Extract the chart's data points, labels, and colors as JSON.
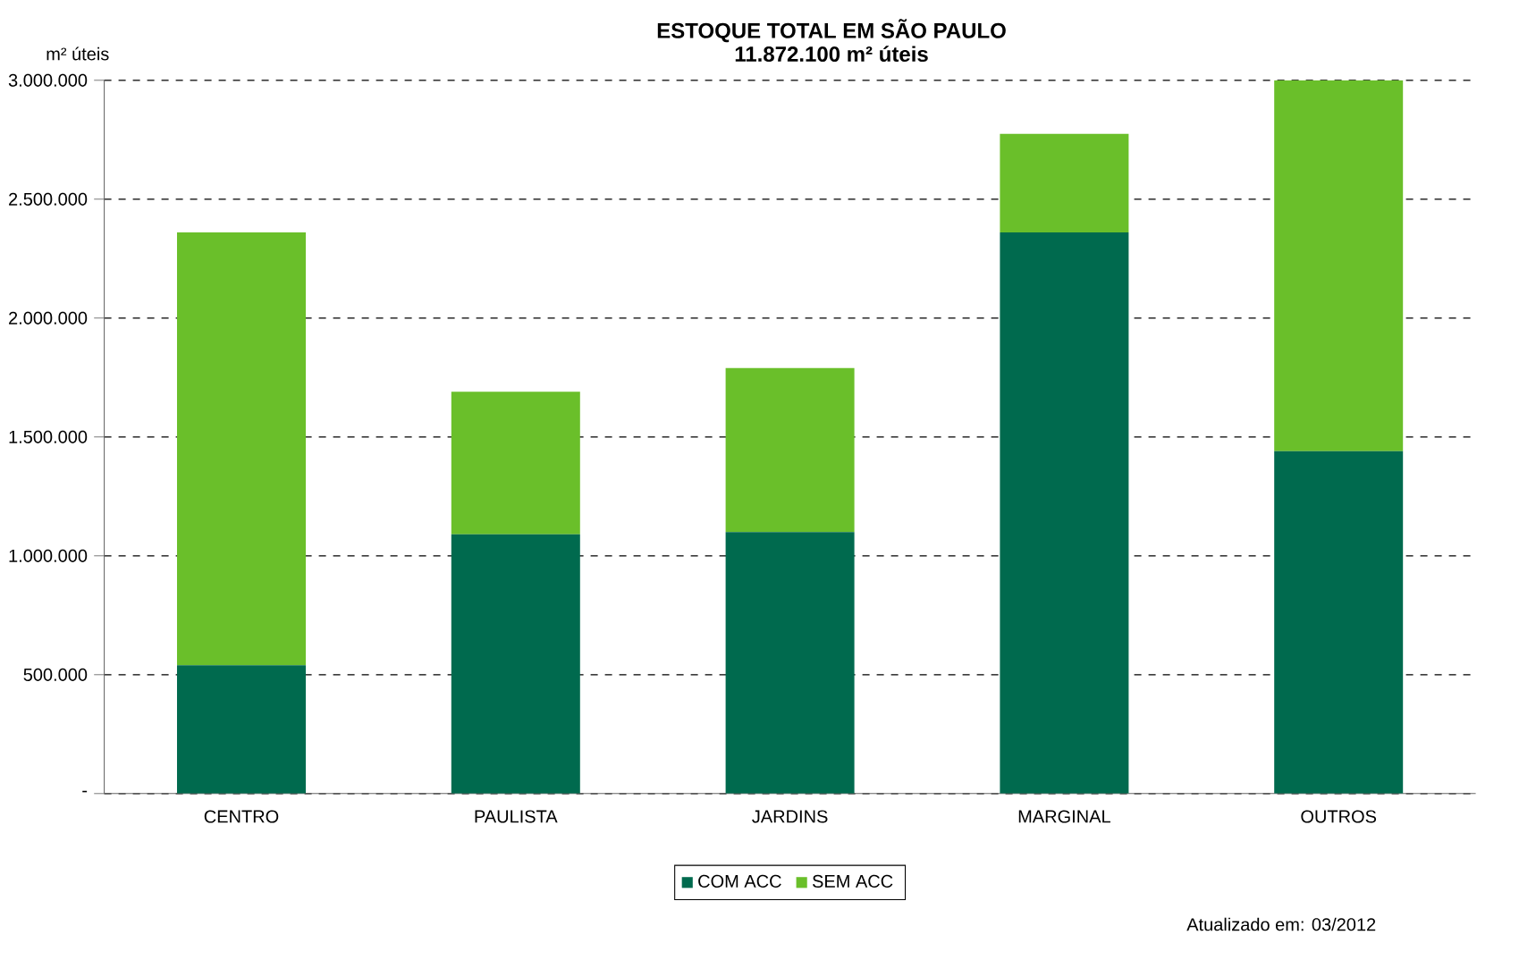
{
  "chart_data": {
    "type": "bar",
    "title": "ESTOQUE TOTAL EM SÃO PAULO",
    "subtitle": "11.872.100 m² úteis",
    "ylabel": "m² úteis",
    "categories": [
      "CENTRO",
      "PAULISTA",
      "JARDINS",
      "MARGINAL",
      "OUTROS"
    ],
    "series": [
      {
        "name": "COM ACC",
        "color": "#006a4e",
        "values": [
          540000,
          1090000,
          1100000,
          2360000,
          1440000
        ]
      },
      {
        "name": "SEM ACC",
        "color": "#6abf2a",
        "values": [
          1820000,
          600000,
          690000,
          415000,
          1560000
        ]
      }
    ],
    "stacked": true,
    "ylim": [
      0,
      3000000
    ],
    "yticks": [
      {
        "value": 0,
        "label": "-"
      },
      {
        "value": 500000,
        "label": "500.000"
      },
      {
        "value": 1000000,
        "label": "1.000.000"
      },
      {
        "value": 1500000,
        "label": "1.500.000"
      },
      {
        "value": 2000000,
        "label": "2.000.000"
      },
      {
        "value": 2500000,
        "label": "2.500.000"
      },
      {
        "value": 3000000,
        "label": "3.000.000"
      }
    ],
    "grid": "y",
    "legend": "bottom",
    "annotations": [
      "Atualizado em: 03/2012"
    ]
  }
}
